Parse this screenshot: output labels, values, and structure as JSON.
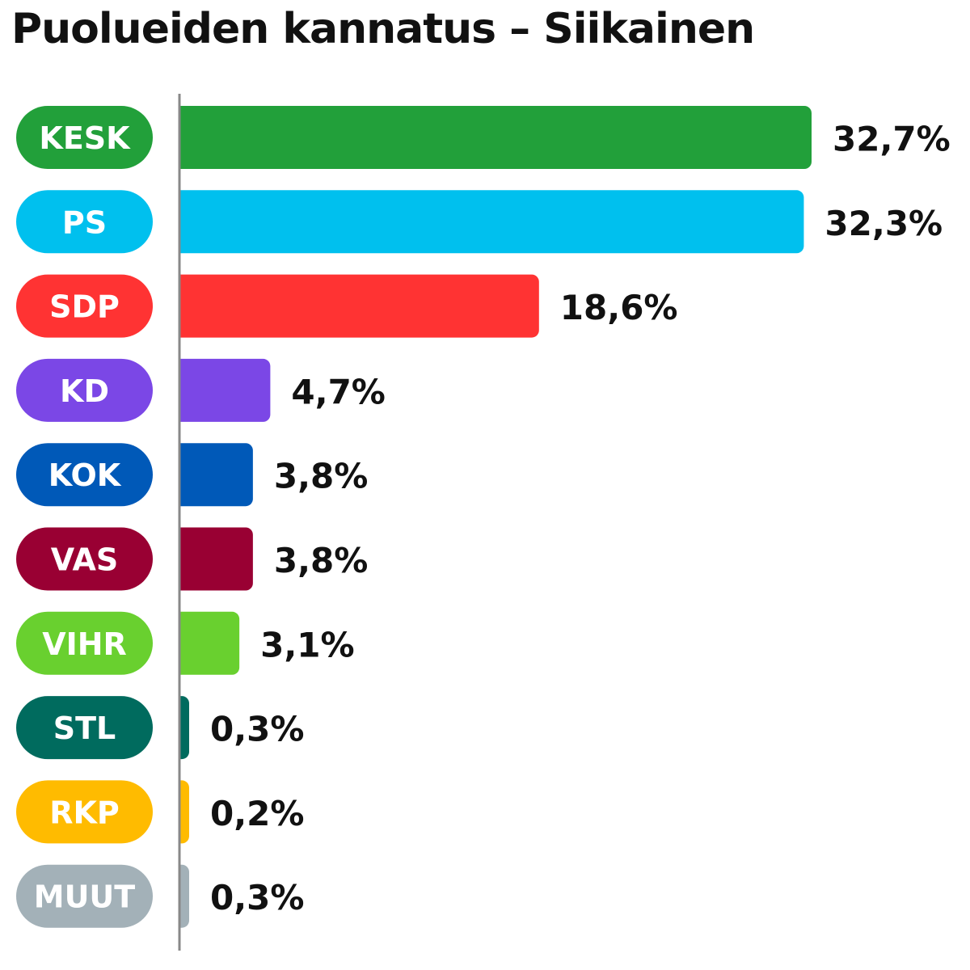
{
  "chart_data": {
    "type": "bar",
    "orientation": "horizontal",
    "title": "Puolueiden kannatus – Siikainen",
    "categories": [
      "KESK",
      "PS",
      "SDP",
      "KD",
      "KOK",
      "VAS",
      "VIHR",
      "STL",
      "RKP",
      "MUUT"
    ],
    "values": [
      32.7,
      32.3,
      18.6,
      4.7,
      3.8,
      3.8,
      3.1,
      0.3,
      0.2,
      0.3
    ],
    "value_labels": [
      "32,7%",
      "32,3%",
      "18,6%",
      "4,7%",
      "3,8%",
      "3,8%",
      "3,1%",
      "0,3%",
      "0,2%",
      "0,3%"
    ],
    "colors": [
      "#22a03a",
      "#00c0ee",
      "#ff3333",
      "#7b47e6",
      "#0059b8",
      "#990033",
      "#69d02f",
      "#006b5e",
      "#ffbb00",
      "#a3b1b8"
    ],
    "xlabel": "",
    "ylabel": "",
    "grid": false,
    "legend": "none"
  }
}
